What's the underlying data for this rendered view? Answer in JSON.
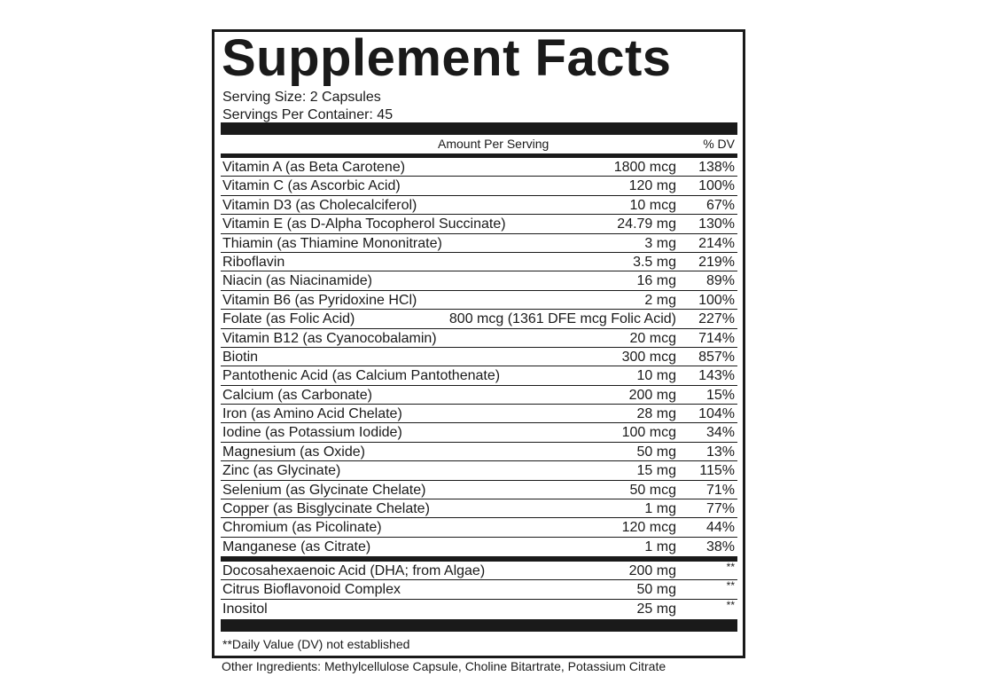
{
  "title": "Supplement Facts",
  "serving_size": "Serving Size: 2 Capsules",
  "servings_per_container": "Servings Per Container: 45",
  "header": {
    "amount": "Amount Per Serving",
    "dv": "% DV"
  },
  "nutrients": [
    {
      "name": "Vitamin A (as Beta Carotene)",
      "amount": "1800 mcg",
      "dv": "138%"
    },
    {
      "name": "Vitamin C (as Ascorbic Acid)",
      "amount": "120 mg",
      "dv": "100%"
    },
    {
      "name": "Vitamin D3 (as Cholecalciferol)",
      "amount": "10 mcg",
      "dv": "67%"
    },
    {
      "name": "Vitamin E (as D-Alpha Tocopherol Succinate)",
      "amount": "24.79 mg",
      "dv": "130%"
    },
    {
      "name": "Thiamin (as Thiamine Mononitrate)",
      "amount": "3 mg",
      "dv": "214%"
    },
    {
      "name": "Riboflavin",
      "amount": "3.5 mg",
      "dv": "219%"
    },
    {
      "name": "Niacin (as Niacinamide)",
      "amount": "16 mg",
      "dv": "89%"
    },
    {
      "name": "Vitamin B6 (as Pyridoxine HCl)",
      "amount": "2 mg",
      "dv": "100%"
    },
    {
      "name": "Folate (as Folic Acid)",
      "amount": "800 mcg (1361 DFE mcg Folic Acid)",
      "dv": "227%"
    },
    {
      "name": "Vitamin B12 (as Cyanocobalamin)",
      "amount": "20 mcg",
      "dv": "714%"
    },
    {
      "name": "Biotin",
      "amount": "300 mcg",
      "dv": "857%"
    },
    {
      "name": "Pantothenic Acid (as Calcium Pantothenate)",
      "amount": "10 mg",
      "dv": "143%"
    },
    {
      "name": "Calcium (as Carbonate)",
      "amount": "200 mg",
      "dv": "15%"
    },
    {
      "name": "Iron (as Amino Acid Chelate)",
      "amount": "28 mg",
      "dv": "104%"
    },
    {
      "name": "Iodine (as Potassium Iodide)",
      "amount": "100 mcg",
      "dv": "34%"
    },
    {
      "name": "Magnesium (as Oxide)",
      "amount": "50 mg",
      "dv": "13%"
    },
    {
      "name": "Zinc (as Glycinate)",
      "amount": "15 mg",
      "dv": "115%"
    },
    {
      "name": "Selenium (as Glycinate Chelate)",
      "amount": "50 mcg",
      "dv": "71%"
    },
    {
      "name": "Copper (as Bisglycinate Chelate)",
      "amount": "1 mg",
      "dv": "77%"
    },
    {
      "name": "Chromium (as Picolinate)",
      "amount": "120 mcg",
      "dv": "44%"
    },
    {
      "name": "Manganese (as Citrate)",
      "amount": "1 mg",
      "dv": "38%"
    }
  ],
  "other_nutrients": [
    {
      "name": "Docosahexaenoic Acid (DHA; from Algae)",
      "amount": "200 mg",
      "dv": "**"
    },
    {
      "name": "Citrus Bioflavonoid Complex",
      "amount": "50 mg",
      "dv": "**"
    },
    {
      "name": "Inositol",
      "amount": "25 mg",
      "dv": "**"
    }
  ],
  "footnote": "**Daily Value (DV) not established",
  "other_ingredients": "Other Ingredients: Methylcellulose Capsule, Choline Bitartrate, Potassium Citrate"
}
